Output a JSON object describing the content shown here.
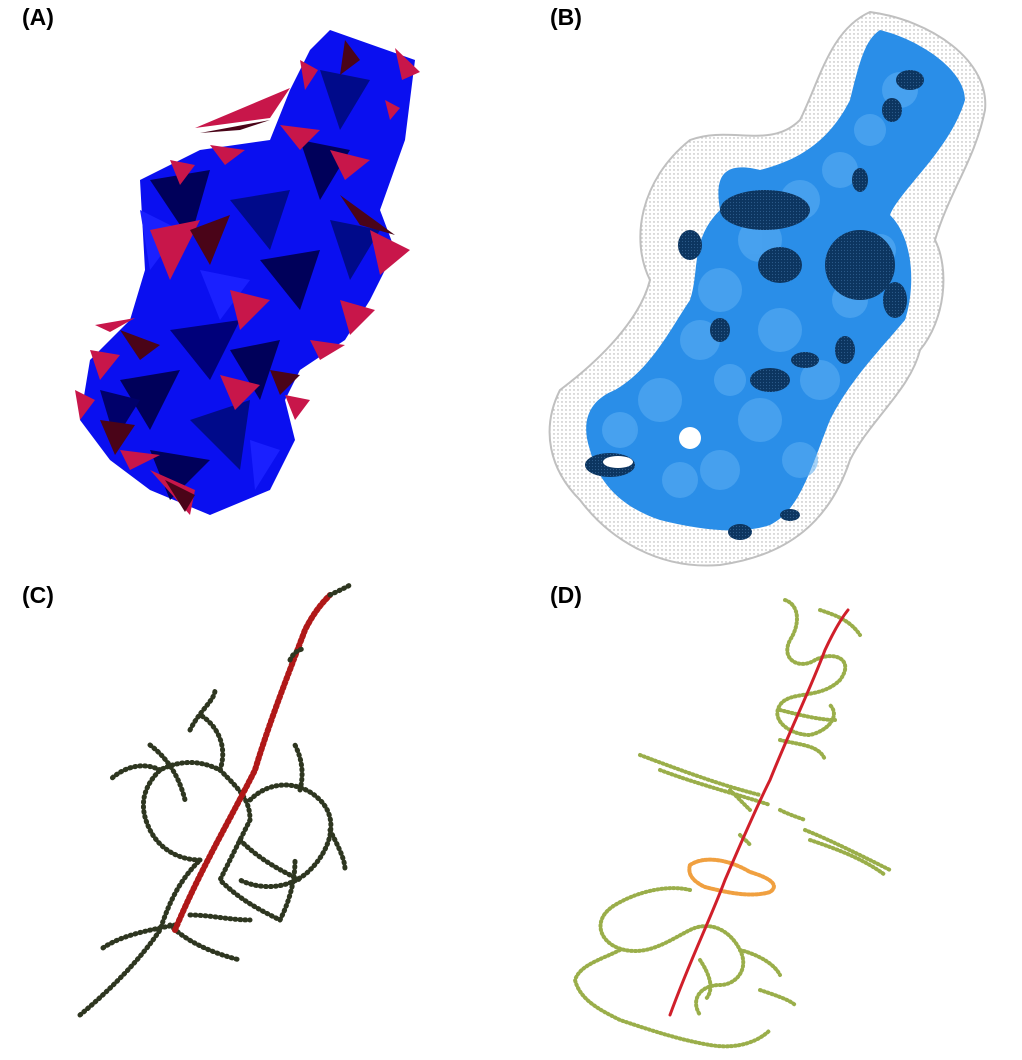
{
  "panels": [
    {
      "label": "(A)"
    },
    {
      "label": "(B)"
    },
    {
      "label": "(C)"
    },
    {
      "label": "(D)"
    }
  ],
  "colors": {
    "mesh_blue": "#0a0ff0",
    "mesh_dark": "#00005a",
    "mesh_red": "#c8164a",
    "mesh_darkred": "#4a0418",
    "surface_blue": "#2a8ee8",
    "surface_dark": "#0c3560",
    "dots_gray": "#b8b8b8",
    "skeleton_dark": "#2e3620",
    "path_red": "#b01818",
    "skeleton_olive": "#9aae4a",
    "ring_orange": "#f0a040",
    "path_red_d": "#d01f2a"
  }
}
